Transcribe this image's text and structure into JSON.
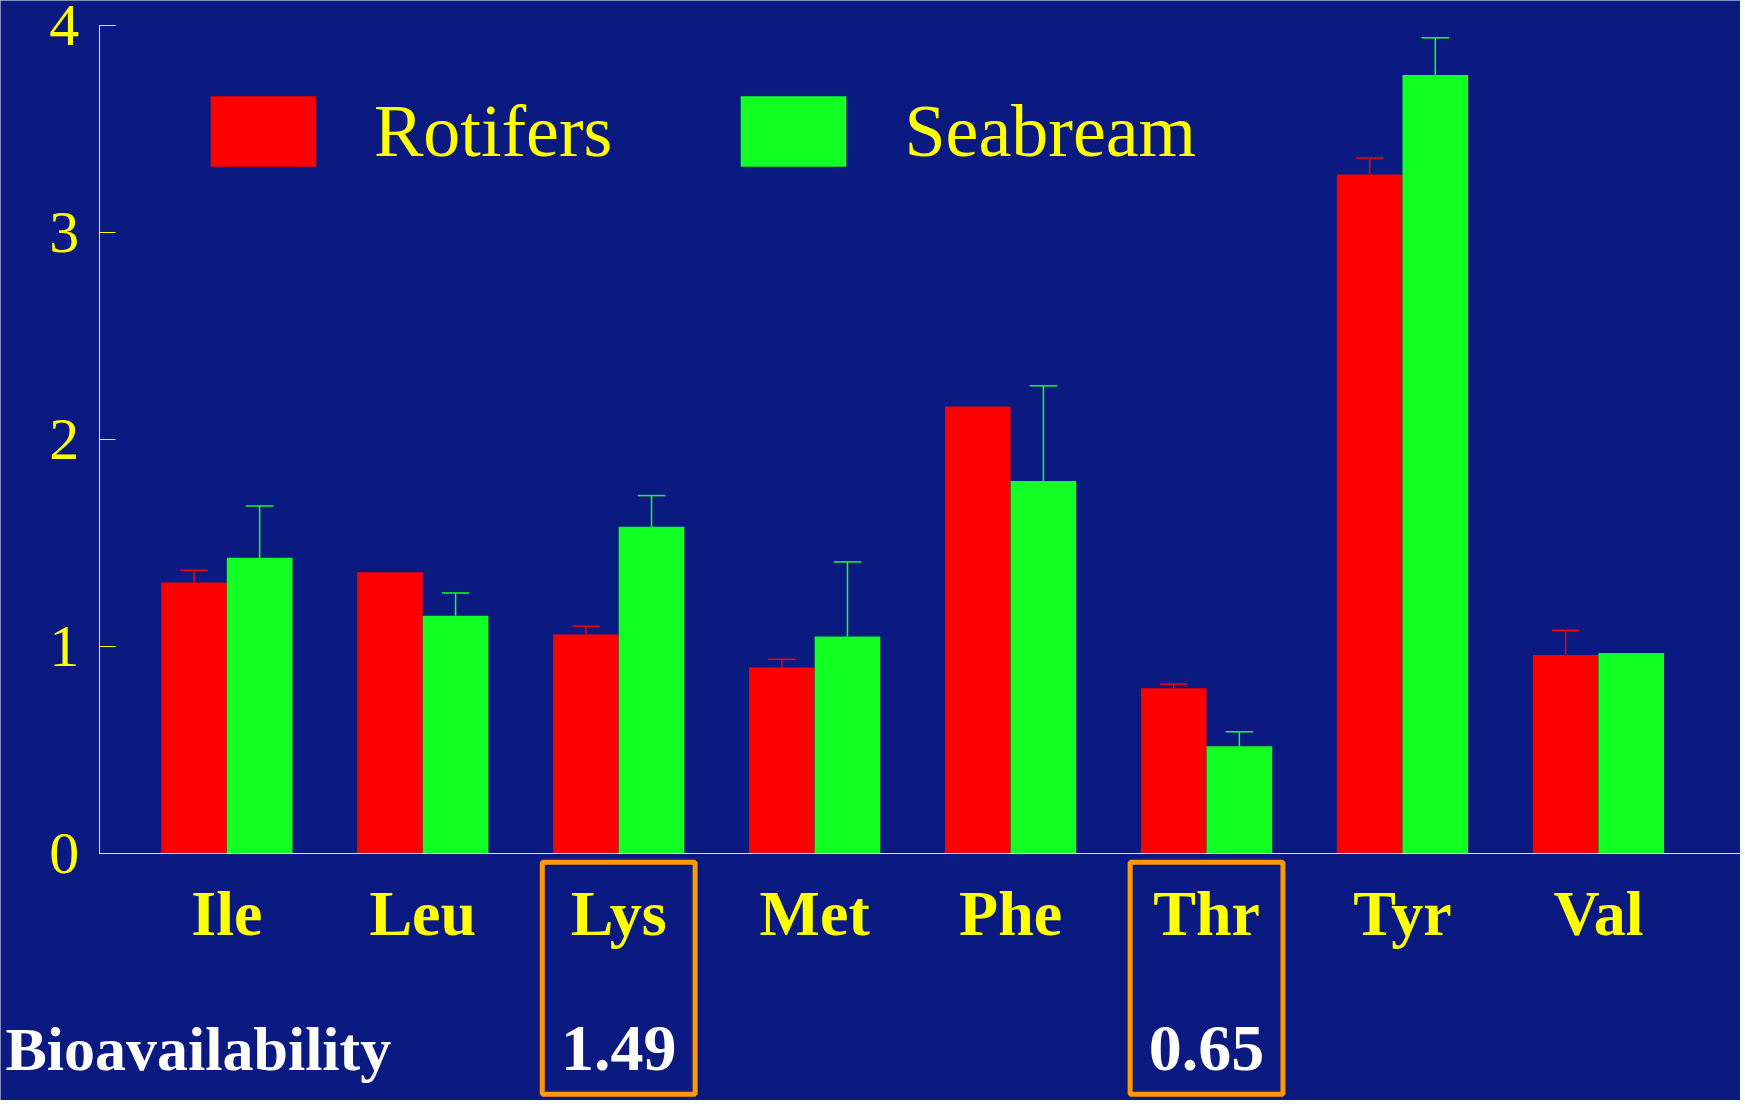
{
  "chart_data": {
    "type": "bar",
    "categories": [
      "Ile",
      "Leu",
      "Lys",
      "Met",
      "Phe",
      "Thr",
      "Tyr",
      "Val"
    ],
    "series": [
      {
        "name": "Rotifers",
        "color": "#ff0000",
        "values": [
          1.31,
          1.36,
          1.06,
          0.9,
          2.16,
          0.8,
          3.28,
          0.96
        ],
        "errors": [
          [
            1.31,
            1.37
          ],
          null,
          [
            1.06,
            1.1
          ],
          [
            0.9,
            0.94
          ],
          null,
          [
            0.8,
            0.82
          ],
          [
            3.28,
            3.36
          ],
          [
            0.96,
            1.08
          ]
        ]
      },
      {
        "name": "Seabream",
        "color": "#11ff22",
        "values": [
          1.43,
          1.15,
          1.58,
          1.05,
          1.8,
          0.52,
          3.76,
          0.97
        ],
        "errors": [
          [
            1.43,
            1.68
          ],
          [
            1.15,
            1.26
          ],
          [
            1.58,
            1.73
          ],
          [
            1.05,
            1.41
          ],
          [
            1.8,
            2.26
          ],
          [
            0.52,
            0.59
          ],
          [
            3.76,
            3.94
          ],
          null
        ]
      }
    ],
    "ylim": [
      0,
      4
    ],
    "yticks": [
      0,
      1,
      2,
      3,
      4
    ],
    "grid": false,
    "legend": "top left",
    "annotations": [
      "Bioavailability",
      "1.49",
      "0.65"
    ]
  }
}
